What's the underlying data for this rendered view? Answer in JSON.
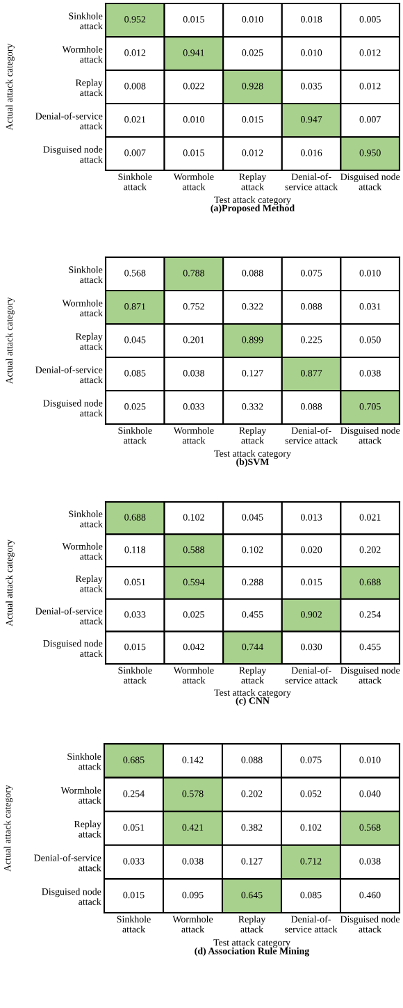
{
  "chart_data": [
    {
      "type": "heatmap",
      "title": "(a)Proposed Method",
      "xlabel": "Test attack category",
      "ylabel": "Actual attack category",
      "categories": [
        "Sinkhole\nattack",
        "Wormhole\nattack",
        "Replay\nattack",
        "Denial-of-\nservice attack",
        "Disguised node\nattack"
      ],
      "y_categories": [
        "Sinkhole\nattack",
        "Wormhole\nattack",
        "Replay\nattack",
        "Denial-of-service\nattack",
        "Disguised node\nattack"
      ],
      "cells": [
        [
          0.952,
          0.015,
          0.01,
          0.018,
          0.005
        ],
        [
          0.012,
          0.941,
          0.025,
          0.01,
          0.012
        ],
        [
          0.008,
          0.022,
          0.928,
          0.035,
          0.012
        ],
        [
          0.021,
          0.01,
          0.015,
          0.947,
          0.007
        ],
        [
          0.007,
          0.015,
          0.012,
          0.016,
          0.95
        ]
      ],
      "cell_labels": [
        [
          "0.952",
          "0.015",
          "0.010",
          "0.018",
          "0.005"
        ],
        [
          "0.012",
          "0.941",
          "0.025",
          "0.010",
          "0.012"
        ],
        [
          "0.008",
          "0.022",
          "0.928",
          "0.035",
          "0.012"
        ],
        [
          "0.021",
          "0.010",
          "0.015",
          "0.947",
          "0.007"
        ],
        [
          "0.007",
          "0.015",
          "0.012",
          "0.016",
          "0.950"
        ]
      ],
      "colors": [
        [
          "#a9d18e",
          "#ffffff",
          "#ffffff",
          "#ffffff",
          "#ffffff"
        ],
        [
          "#ffffff",
          "#a9d18e",
          "#ffffff",
          "#ffffff",
          "#ffffff"
        ],
        [
          "#ffffff",
          "#ffffff",
          "#a9d18e",
          "#ffffff",
          "#ffffff"
        ],
        [
          "#ffffff",
          "#ffffff",
          "#ffffff",
          "#a9d18e",
          "#ffffff"
        ],
        [
          "#ffffff",
          "#ffffff",
          "#ffffff",
          "#ffffff",
          "#a9d18e"
        ]
      ],
      "data_labels": true
    },
    {
      "type": "heatmap",
      "title": "(b)SVM",
      "xlabel": "Test attack category",
      "ylabel": "Actual attack category",
      "categories": [
        "Sinkhole\nattack",
        "Wormhole\nattack",
        "Replay\nattack",
        "Denial-of-\nservice attack",
        "Disguised node\nattack"
      ],
      "y_categories": [
        "Sinkhole\nattack",
        "Wormhole\nattack",
        "Replay\nattack",
        "Denial-of-service\nattack",
        "Disguised node\nattack"
      ],
      "cells": [
        [
          0.568,
          0.788,
          0.088,
          0.075,
          0.01
        ],
        [
          0.871,
          0.752,
          0.322,
          0.088,
          0.031
        ],
        [
          0.045,
          0.201,
          0.899,
          0.225,
          0.05
        ],
        [
          0.085,
          0.038,
          0.127,
          0.877,
          0.038
        ],
        [
          0.025,
          0.033,
          0.332,
          0.088,
          0.705
        ]
      ],
      "cell_labels": [
        [
          "0.568",
          "0.788",
          "0.088",
          "0.075",
          "0.010"
        ],
        [
          "0.871",
          "0.752",
          "0.322",
          "0.088",
          "0.031"
        ],
        [
          "0.045",
          "0.201",
          "0.899",
          "0.225",
          "0.050"
        ],
        [
          "0.085",
          "0.038",
          "0.127",
          "0.877",
          "0.038"
        ],
        [
          "0.025",
          "0.033",
          "0.332",
          "0.088",
          "0.705"
        ]
      ],
      "colors": [
        [
          "#ffffff",
          "#a9d18e",
          "#ffffff",
          "#ffffff",
          "#ffffff"
        ],
        [
          "#a9d18e",
          "#ffffff",
          "#ffffff",
          "#ffffff",
          "#ffffff"
        ],
        [
          "#ffffff",
          "#ffffff",
          "#a9d18e",
          "#ffffff",
          "#ffffff"
        ],
        [
          "#ffffff",
          "#ffffff",
          "#ffffff",
          "#a9d18e",
          "#ffffff"
        ],
        [
          "#ffffff",
          "#ffffff",
          "#ffffff",
          "#ffffff",
          "#a9d18e"
        ]
      ],
      "data_labels": true
    },
    {
      "type": "heatmap",
      "title": "(c) CNN",
      "xlabel": "Test attack category",
      "ylabel": "Actual attack category",
      "categories": [
        "Sinkhole\nattack",
        "Wormhole\nattack",
        "Replay\nattack",
        "Denial-of-\nservice attack",
        "Disguised node\nattack"
      ],
      "y_categories": [
        "Sinkhole\nattack",
        "Wormhole\nattack",
        "Replay\nattack",
        "Denial-of-service\nattack",
        "Disguised node\nattack"
      ],
      "cells": [
        [
          0.688,
          0.102,
          0.045,
          0.013,
          0.021
        ],
        [
          0.118,
          0.588,
          0.102,
          0.02,
          0.202
        ],
        [
          0.051,
          0.594,
          0.288,
          0.015,
          0.688
        ],
        [
          0.033,
          0.025,
          0.455,
          0.902,
          0.254
        ],
        [
          0.015,
          0.042,
          0.744,
          0.03,
          0.455
        ]
      ],
      "cell_labels": [
        [
          "0.688",
          "0.102",
          "0.045",
          "0.013",
          "0.021"
        ],
        [
          "0.118",
          "0.588",
          "0.102",
          "0.020",
          "0.202"
        ],
        [
          "0.051",
          "0.594",
          "0.288",
          "0.015",
          "0.688"
        ],
        [
          "0.033",
          "0.025",
          "0.455",
          "0.902",
          "0.254"
        ],
        [
          "0.015",
          "0.042",
          "0.744",
          "0.030",
          "0.455"
        ]
      ],
      "colors": [
        [
          "#a9d18e",
          "#ffffff",
          "#ffffff",
          "#ffffff",
          "#ffffff"
        ],
        [
          "#ffffff",
          "#a9d18e",
          "#ffffff",
          "#ffffff",
          "#ffffff"
        ],
        [
          "#ffffff",
          "#a9d18e",
          "#ffffff",
          "#ffffff",
          "#a9d18e"
        ],
        [
          "#ffffff",
          "#ffffff",
          "#ffffff",
          "#a9d18e",
          "#ffffff"
        ],
        [
          "#ffffff",
          "#ffffff",
          "#a9d18e",
          "#ffffff",
          "#ffffff"
        ]
      ],
      "data_labels": true
    },
    {
      "type": "heatmap",
      "title": "(d) Association Rule Mining",
      "xlabel": "Test attack category",
      "ylabel": "Actual attack category",
      "categories": [
        "Sinkhole\nattack",
        "Wormhole\nattack",
        "Replay\nattack",
        "Denial-of-\nservice attack",
        "Disguised node\nattack"
      ],
      "y_categories": [
        "Sinkhole\nattack",
        "Wormhole\nattack",
        "Replay\nattack",
        "Denial-of-service\nattack",
        "Disguised node\nattack"
      ],
      "cells": [
        [
          0.685,
          0.142,
          0.088,
          0.075,
          0.01
        ],
        [
          0.254,
          0.578,
          0.202,
          0.052,
          0.04
        ],
        [
          0.051,
          0.421,
          0.382,
          0.102,
          0.568
        ],
        [
          0.033,
          0.038,
          0.127,
          0.712,
          0.038
        ],
        [
          0.015,
          0.095,
          0.645,
          0.085,
          0.46
        ]
      ],
      "cell_labels": [
        [
          "0.685",
          "0.142",
          "0.088",
          "0.075",
          "0.010"
        ],
        [
          "0.254",
          "0.578",
          "0.202",
          "0.052",
          "0.040"
        ],
        [
          "0.051",
          "0.421",
          "0.382",
          "0.102",
          "0.568"
        ],
        [
          "0.033",
          "0.038",
          "0.127",
          "0.712",
          "0.038"
        ],
        [
          "0.015",
          "0.095",
          "0.645",
          "0.085",
          "0.460"
        ]
      ],
      "colors": [
        [
          "#a9d18e",
          "#ffffff",
          "#ffffff",
          "#ffffff",
          "#ffffff"
        ],
        [
          "#ffffff",
          "#a9d18e",
          "#ffffff",
          "#ffffff",
          "#ffffff"
        ],
        [
          "#ffffff",
          "#a9d18e",
          "#ffffff",
          "#ffffff",
          "#a9d18e"
        ],
        [
          "#ffffff",
          "#ffffff",
          "#ffffff",
          "#a9d18e",
          "#ffffff"
        ],
        [
          "#ffffff",
          "#ffffff",
          "#a9d18e",
          "#ffffff",
          "#ffffff"
        ]
      ],
      "data_labels": true
    }
  ]
}
